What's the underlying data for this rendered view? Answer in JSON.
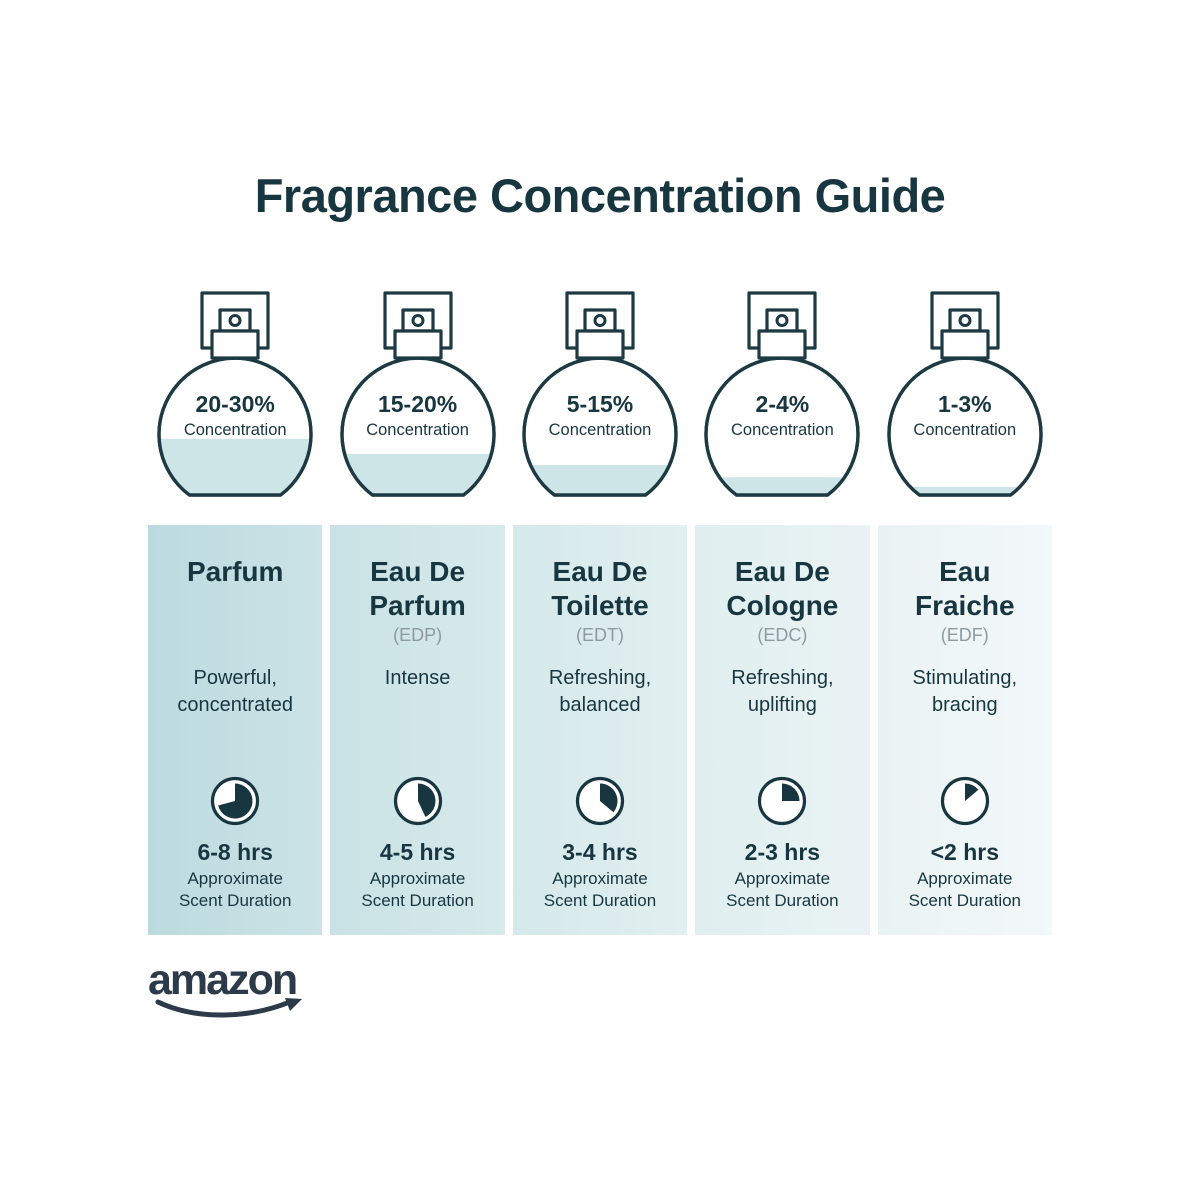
{
  "title": "Fragrance Concentration Guide",
  "brand": {
    "logo_text": "amazon"
  },
  "labels": {
    "concentration": "Concentration",
    "caption_line1": "Approximate",
    "caption_line2": "Scent Duration"
  },
  "colors": {
    "ink": "#183640",
    "outline": "#1d3a43",
    "liquid": "#cde5e7",
    "abbr_gray": "#8d9ba0",
    "logo": "#2c3a49",
    "column_bgs": [
      [
        "#bcdbdf",
        "#cbe3e6"
      ],
      [
        "#c9e2e5",
        "#d7eaec"
      ],
      [
        "#d5e9eb",
        "#e1eff0"
      ],
      [
        "#dfeef0",
        "#eaf3f4"
      ],
      [
        "#e9f3f4",
        "#f3f8f9"
      ]
    ]
  },
  "products": [
    {
      "concentration_range": "20-30%",
      "fill_percent": 41,
      "clock_angle_deg": 255,
      "name_line1": "Parfum",
      "name_line2": "",
      "abbr": "",
      "desc_line1": "Powerful,",
      "desc_line2": "concentrated",
      "duration": "6-8 hrs"
    },
    {
      "concentration_range": "15-20%",
      "fill_percent": 30,
      "clock_angle_deg": 155,
      "name_line1": "Eau De",
      "name_line2": "Parfum",
      "abbr": "(EDP)",
      "desc_line1": "Intense",
      "desc_line2": "",
      "duration": "4-5 hrs"
    },
    {
      "concentration_range": "5-15%",
      "fill_percent": 22,
      "clock_angle_deg": 130,
      "name_line1": "Eau De",
      "name_line2": "Toilette",
      "abbr": "(EDT)",
      "desc_line1": "Refreshing,",
      "desc_line2": "balanced",
      "duration": "3-4 hrs"
    },
    {
      "concentration_range": "2-4%",
      "fill_percent": 13,
      "clock_angle_deg": 90,
      "name_line1": "Eau De",
      "name_line2": "Cologne",
      "abbr": "(EDC)",
      "desc_line1": "Refreshing,",
      "desc_line2": "uplifting",
      "duration": "2-3 hrs"
    },
    {
      "concentration_range": "1-3%",
      "fill_percent": 6,
      "clock_angle_deg": 50,
      "name_line1": "Eau",
      "name_line2": "Fraiche",
      "abbr": "(EDF)",
      "desc_line1": "Stimulating,",
      "desc_line2": "bracing",
      "duration": "<2 hrs"
    }
  ]
}
